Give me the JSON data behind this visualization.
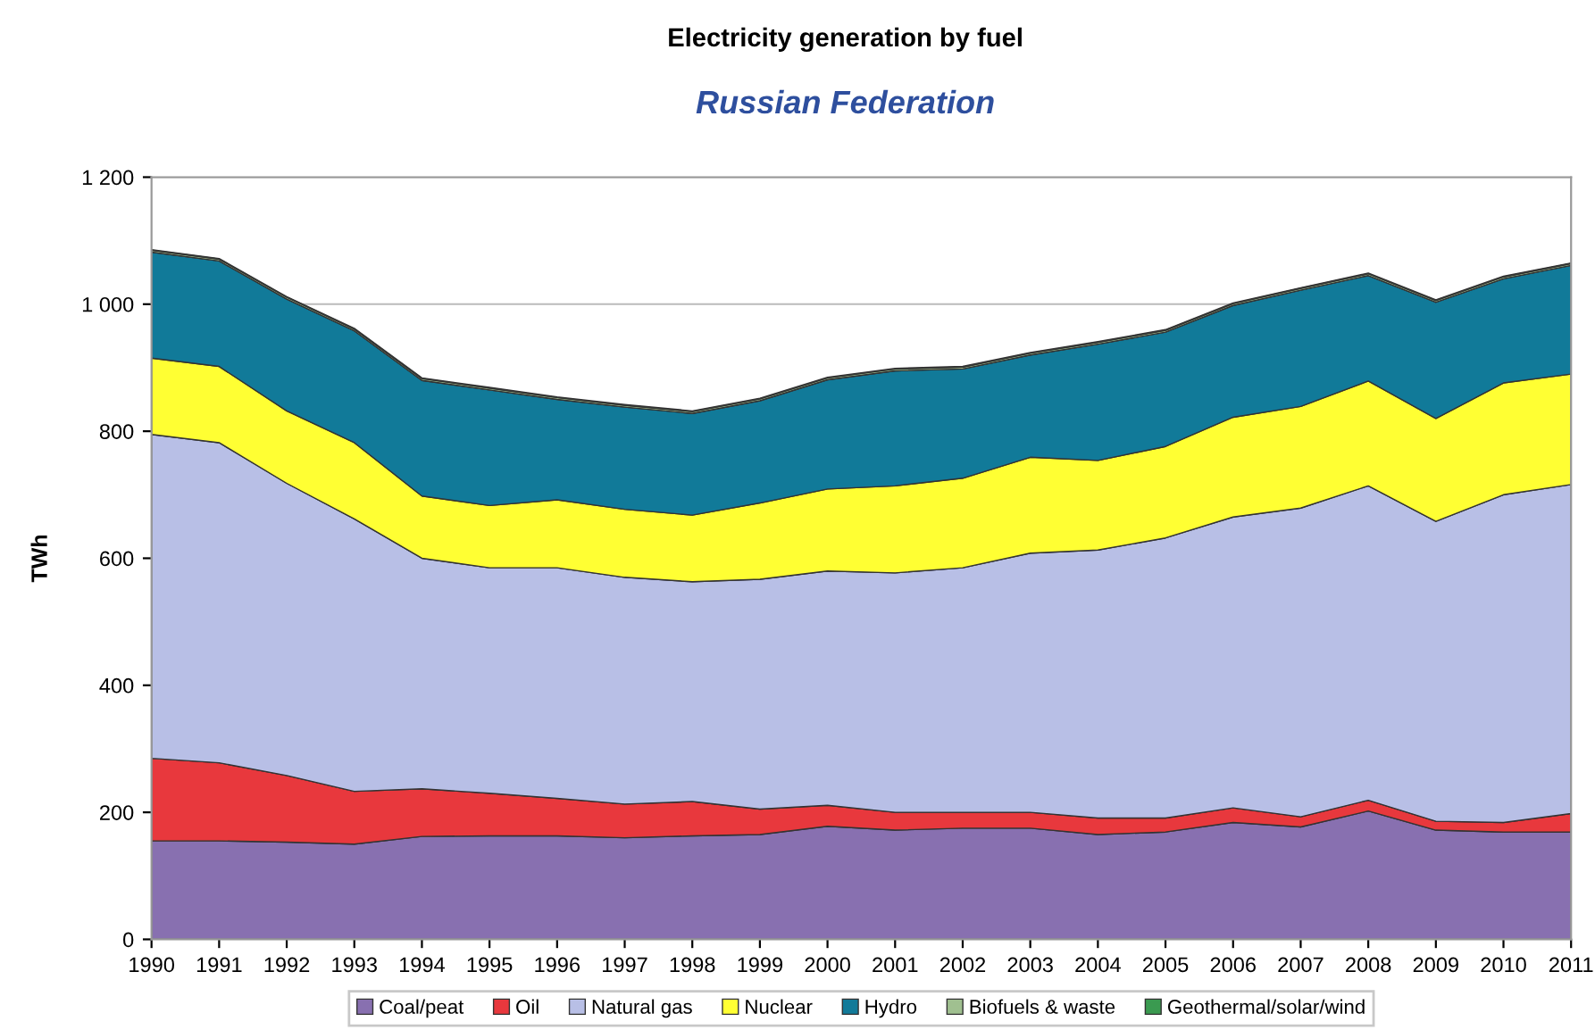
{
  "chart_data": {
    "type": "area",
    "stacked": true,
    "title": "Electricity generation by fuel",
    "subtitle": "Russian Federation",
    "ylabel": "TWh",
    "x": [
      1990,
      1991,
      1992,
      1993,
      1994,
      1995,
      1996,
      1997,
      1998,
      1999,
      2000,
      2001,
      2002,
      2003,
      2004,
      2005,
      2006,
      2007,
      2008,
      2009,
      2010,
      2011
    ],
    "series": [
      {
        "name": "Coal/peat",
        "color": "#8870b0",
        "values": [
          155,
          155,
          153,
          150,
          162,
          163,
          163,
          160,
          163,
          165,
          178,
          172,
          175,
          175,
          165,
          169,
          184,
          177,
          202,
          172,
          169,
          169
        ]
      },
      {
        "name": "Oil",
        "color": "#e8383d",
        "values": [
          130,
          123,
          105,
          83,
          75,
          67,
          59,
          53,
          54,
          40,
          33,
          28,
          25,
          25,
          26,
          22,
          23,
          16,
          17,
          14,
          15,
          29
        ]
      },
      {
        "name": "Natural gas",
        "color": "#b8bfe6",
        "values": [
          510,
          504,
          460,
          429,
          363,
          355,
          363,
          357,
          346,
          362,
          369,
          377,
          385,
          408,
          422,
          441,
          458,
          486,
          495,
          472,
          516,
          518
        ]
      },
      {
        "name": "Nuclear",
        "color": "#ffff33",
        "values": [
          120,
          120,
          114,
          120,
          98,
          98,
          107,
          107,
          105,
          120,
          129,
          137,
          141,
          151,
          141,
          144,
          157,
          160,
          165,
          162,
          176,
          174
        ]
      },
      {
        "name": "Hydro",
        "color": "#117a99",
        "values": [
          167,
          166,
          176,
          176,
          182,
          182,
          158,
          161,
          160,
          161,
          172,
          181,
          172,
          161,
          183,
          180,
          176,
          183,
          166,
          183,
          164,
          171
        ]
      },
      {
        "name": "Biofuels & waste",
        "color": "#a0c090",
        "values": [
          3,
          3,
          3,
          3,
          3,
          3,
          3,
          3,
          3,
          3,
          3,
          3,
          3,
          3,
          3,
          3,
          3,
          3,
          3,
          3,
          3,
          3
        ]
      },
      {
        "name": "Geothermal/solar/wind",
        "color": "#3a9a50",
        "values": [
          1,
          1,
          1,
          1,
          1,
          1,
          1,
          1,
          1,
          1,
          1,
          1,
          1,
          1,
          1,
          1,
          1,
          1,
          1,
          1,
          1,
          1
        ]
      }
    ],
    "xlim": [
      1990,
      2011
    ],
    "xticks": [
      1990,
      1991,
      1992,
      1993,
      1994,
      1995,
      1996,
      1997,
      1998,
      1999,
      2000,
      2001,
      2002,
      2003,
      2004,
      2005,
      2006,
      2007,
      2008,
      2009,
      2010,
      2011
    ],
    "ylim": [
      0,
      1200
    ],
    "yticks": [
      0,
      200,
      400,
      600,
      800,
      {
        "value": 1000,
        "label": "1 000"
      },
      {
        "value": 1200,
        "label": "1 200"
      }
    ],
    "grid": "y",
    "legend": "bottom"
  }
}
